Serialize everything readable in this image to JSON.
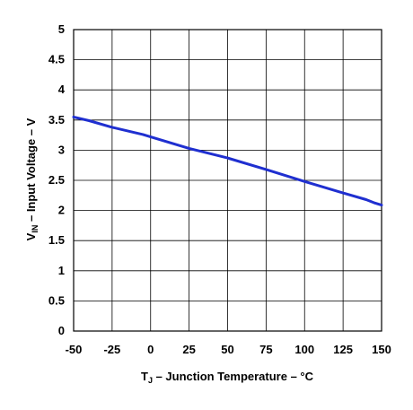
{
  "chart_data": {
    "type": "line",
    "xlabel": {
      "symbol": "T",
      "subscript": "J",
      "rest": " – Junction Temperature – °C"
    },
    "ylabel": {
      "symbol": "V",
      "subscript": "IN",
      "rest": " – Input Voltage – V"
    },
    "xlim": [
      -50,
      150
    ],
    "ylim": [
      0,
      5
    ],
    "x_ticks": [
      -50,
      -25,
      0,
      25,
      50,
      75,
      100,
      125,
      150
    ],
    "y_ticks": [
      0,
      0.5,
      1,
      1.5,
      2,
      2.5,
      3,
      3.5,
      4,
      4.5,
      5
    ],
    "grid": true,
    "series_color": "#1f2fd0",
    "grid_color": "#000000",
    "series": [
      {
        "x": [
          -50,
          -40,
          -25,
          -10,
          -5,
          0,
          25,
          50,
          75,
          100,
          125,
          140,
          145,
          150
        ],
        "y": [
          3.55,
          3.49,
          3.38,
          3.29,
          3.26,
          3.22,
          3.03,
          2.87,
          2.68,
          2.48,
          2.29,
          2.18,
          2.13,
          2.09
        ]
      }
    ]
  }
}
